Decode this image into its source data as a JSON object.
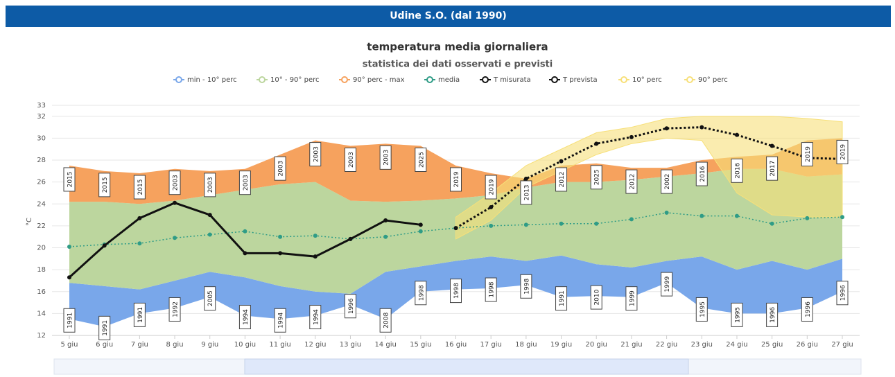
{
  "header": {
    "title": "Udine S.O. (dal 1990)"
  },
  "chart_data": {
    "type": "band-line",
    "title": "temperatura media giornaliera",
    "subtitle": "statistica dei dati osservati e previsti",
    "y_label": "°C",
    "categories": [
      "5 giu",
      "6 giu",
      "7 giu",
      "8 giu",
      "9 giu",
      "10 giu",
      "11 giu",
      "12 giu",
      "13 giu",
      "14 giu",
      "15 giu",
      "16 giu",
      "17 giu",
      "18 giu",
      "19 giu",
      "20 giu",
      "21 giu",
      "22 giu",
      "23 giu",
      "24 giu",
      "25 giu",
      "26 giu",
      "27 giu"
    ],
    "ylim": [
      12,
      33
    ],
    "yticks": [
      12,
      14,
      16,
      18,
      20,
      22,
      24,
      26,
      28,
      30,
      32,
      33
    ],
    "grid": true,
    "series": [
      {
        "name": "min - 10° perc",
        "color": "#79a7ea",
        "low": [
          13.5,
          12.8,
          14.0,
          14.5,
          15.5,
          13.8,
          13.5,
          13.8,
          14.8,
          13.5,
          16.0,
          16.2,
          16.3,
          16.6,
          15.5,
          15.6,
          15.5,
          16.8,
          14.5,
          14.0,
          14.0,
          14.5,
          16.0
        ],
        "high": [
          16.8,
          16.5,
          16.2,
          17.0,
          17.8,
          17.3,
          16.5,
          16.0,
          15.8,
          17.8,
          18.3,
          18.8,
          19.2,
          18.8,
          19.3,
          18.5,
          18.2,
          18.8,
          19.2,
          18.0,
          18.8,
          18.0,
          19.0
        ]
      },
      {
        "name": "10° - 90° perc",
        "color": "#bcd69e",
        "low": [
          16.8,
          16.5,
          16.2,
          17.0,
          17.8,
          17.3,
          16.5,
          16.0,
          15.8,
          17.8,
          18.3,
          18.8,
          19.2,
          18.8,
          19.3,
          18.5,
          18.2,
          18.8,
          19.2,
          18.0,
          18.8,
          18.0,
          19.0
        ],
        "high": [
          24.2,
          24.2,
          24.0,
          24.3,
          24.8,
          25.3,
          25.8,
          26.0,
          24.3,
          24.2,
          24.3,
          24.5,
          24.8,
          25.5,
          26.0,
          26.0,
          26.2,
          26.5,
          26.8,
          27.2,
          27.2,
          26.5,
          26.7
        ]
      },
      {
        "name": "90° perc - max",
        "color": "#f6a25e",
        "low": [
          24.2,
          24.2,
          24.0,
          24.3,
          24.8,
          25.3,
          25.8,
          26.0,
          24.3,
          24.2,
          24.3,
          24.5,
          24.8,
          25.5,
          26.0,
          26.0,
          26.2,
          26.5,
          26.8,
          27.2,
          27.2,
          26.5,
          26.7
        ],
        "high": [
          27.5,
          27.0,
          26.8,
          27.2,
          27.0,
          27.2,
          28.5,
          29.8,
          29.3,
          29.5,
          29.3,
          27.5,
          26.8,
          26.3,
          27.5,
          27.7,
          27.3,
          27.3,
          28.0,
          28.3,
          28.5,
          29.8,
          30.0
        ]
      },
      {
        "name": "media",
        "color": "#2f9c86",
        "dash": true,
        "markers": true,
        "values": [
          20.1,
          20.3,
          20.4,
          20.9,
          21.2,
          21.5,
          21.0,
          21.1,
          20.8,
          21.0,
          21.5,
          21.8,
          22.0,
          22.1,
          22.2,
          22.2,
          22.6,
          23.2,
          22.9,
          22.9,
          22.2,
          22.7,
          22.8
        ]
      },
      {
        "name": "T misurata",
        "color": "#111111",
        "markers": true,
        "values": [
          17.3,
          20.2,
          22.7,
          24.1,
          23.0,
          19.5,
          19.5,
          19.2,
          20.8,
          22.5,
          22.1,
          null,
          null,
          null,
          null,
          null,
          null,
          null,
          null,
          null,
          null,
          null,
          null
        ]
      },
      {
        "name": "T prevista",
        "color": "#111111",
        "dash": true,
        "markers": true,
        "values": [
          null,
          null,
          null,
          null,
          null,
          null,
          null,
          null,
          null,
          null,
          null,
          21.8,
          23.7,
          26.3,
          27.9,
          29.5,
          30.1,
          30.9,
          31.0,
          30.3,
          29.3,
          28.2,
          28.1
        ]
      },
      {
        "name": "10° perc",
        "color": "#f7e07a",
        "forecast_band": "low",
        "values": [
          null,
          null,
          null,
          null,
          null,
          null,
          null,
          null,
          null,
          null,
          null,
          20.8,
          22.5,
          25.5,
          27.0,
          28.5,
          29.5,
          30.0,
          29.8,
          25.0,
          23.0,
          22.8,
          22.8
        ]
      },
      {
        "name": "90° perc",
        "color": "#f7e07a",
        "forecast_band": "high",
        "values": [
          null,
          null,
          null,
          null,
          null,
          null,
          null,
          null,
          null,
          null,
          null,
          22.8,
          25.0,
          27.5,
          29.0,
          30.5,
          31.0,
          31.8,
          32.0,
          32.0,
          32.0,
          31.8,
          31.5
        ]
      }
    ],
    "max_years": [
      "2015",
      "2015",
      "2015",
      "2003",
      "2003",
      "2003",
      "2003",
      "2003",
      "2003",
      "2003",
      "2025",
      "2019",
      "2019",
      "2013",
      "2012",
      "2025",
      "2012",
      "2002",
      "2016",
      "2016",
      "2017",
      "2019",
      "2019"
    ],
    "min_years": [
      "1991",
      "1991",
      "1991",
      "1992",
      "2005",
      "1994",
      "1994",
      "1994",
      "1996",
      "2008",
      "1998",
      "1998",
      "1998",
      "1998",
      "1991",
      "2010",
      "1999",
      "1999",
      "1995",
      "1995",
      "1996",
      "1996",
      "1996"
    ]
  }
}
